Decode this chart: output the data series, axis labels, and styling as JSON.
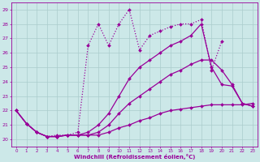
{
  "xlabel": "Windchill (Refroidissement éolien,°C)",
  "xlim": [
    -0.5,
    23.5
  ],
  "ylim": [
    19.5,
    29.5
  ],
  "yticks": [
    20,
    21,
    22,
    23,
    24,
    25,
    26,
    27,
    28,
    29
  ],
  "xticks": [
    0,
    1,
    2,
    3,
    4,
    5,
    6,
    7,
    8,
    9,
    10,
    11,
    12,
    13,
    14,
    15,
    16,
    17,
    18,
    19,
    20,
    21,
    22,
    23
  ],
  "bg_color": "#cce8e8",
  "grid_color": "#aacccc",
  "line_color": "#990099",
  "lines": [
    {
      "x": [
        0,
        1,
        2,
        3,
        4,
        5,
        6,
        7,
        8,
        9,
        10,
        11,
        12,
        13,
        14,
        15,
        16,
        17,
        18,
        19,
        20
      ],
      "y": [
        22.0,
        21.1,
        20.5,
        20.2,
        20.3,
        20.3,
        20.5,
        26.5,
        28.0,
        26.5,
        28.0,
        29.0,
        26.2,
        27.2,
        27.5,
        27.8,
        28.0,
        28.0,
        28.3,
        24.8,
        26.8
      ],
      "style": ":",
      "marker": "D",
      "markersize": 2.0,
      "lw": 0.9
    },
    {
      "x": [
        0,
        1,
        2,
        3,
        4,
        5,
        6,
        7,
        8,
        9,
        10,
        11,
        12,
        13,
        14,
        15,
        16,
        17,
        18,
        19,
        20,
        21,
        22,
        23
      ],
      "y": [
        22.0,
        21.1,
        20.5,
        20.2,
        20.2,
        20.3,
        20.3,
        20.5,
        21.0,
        21.8,
        23.0,
        24.2,
        25.0,
        25.5,
        26.0,
        26.5,
        26.8,
        27.2,
        28.0,
        25.0,
        23.8,
        23.7,
        22.5,
        22.3
      ],
      "style": "-",
      "marker": "D",
      "markersize": 2.0,
      "lw": 0.9
    },
    {
      "x": [
        0,
        1,
        2,
        3,
        4,
        5,
        6,
        7,
        8,
        9,
        10,
        11,
        12,
        13,
        14,
        15,
        16,
        17,
        18,
        19,
        20,
        21,
        22,
        23
      ],
      "y": [
        22.0,
        21.1,
        20.5,
        20.2,
        20.2,
        20.3,
        20.3,
        20.3,
        20.5,
        21.0,
        21.8,
        22.5,
        23.0,
        23.5,
        24.0,
        24.5,
        24.8,
        25.2,
        25.5,
        25.5,
        24.8,
        23.8,
        22.5,
        22.3
      ],
      "style": "-",
      "marker": "D",
      "markersize": 2.0,
      "lw": 0.9
    },
    {
      "x": [
        0,
        1,
        2,
        3,
        4,
        5,
        6,
        7,
        8,
        9,
        10,
        11,
        12,
        13,
        14,
        15,
        16,
        17,
        18,
        19,
        20,
        21,
        22,
        23
      ],
      "y": [
        22.0,
        21.1,
        20.5,
        20.2,
        20.2,
        20.3,
        20.3,
        20.3,
        20.3,
        20.5,
        20.8,
        21.0,
        21.3,
        21.5,
        21.8,
        22.0,
        22.1,
        22.2,
        22.3,
        22.4,
        22.4,
        22.4,
        22.4,
        22.5
      ],
      "style": "-",
      "marker": "D",
      "markersize": 2.0,
      "lw": 0.9
    }
  ]
}
